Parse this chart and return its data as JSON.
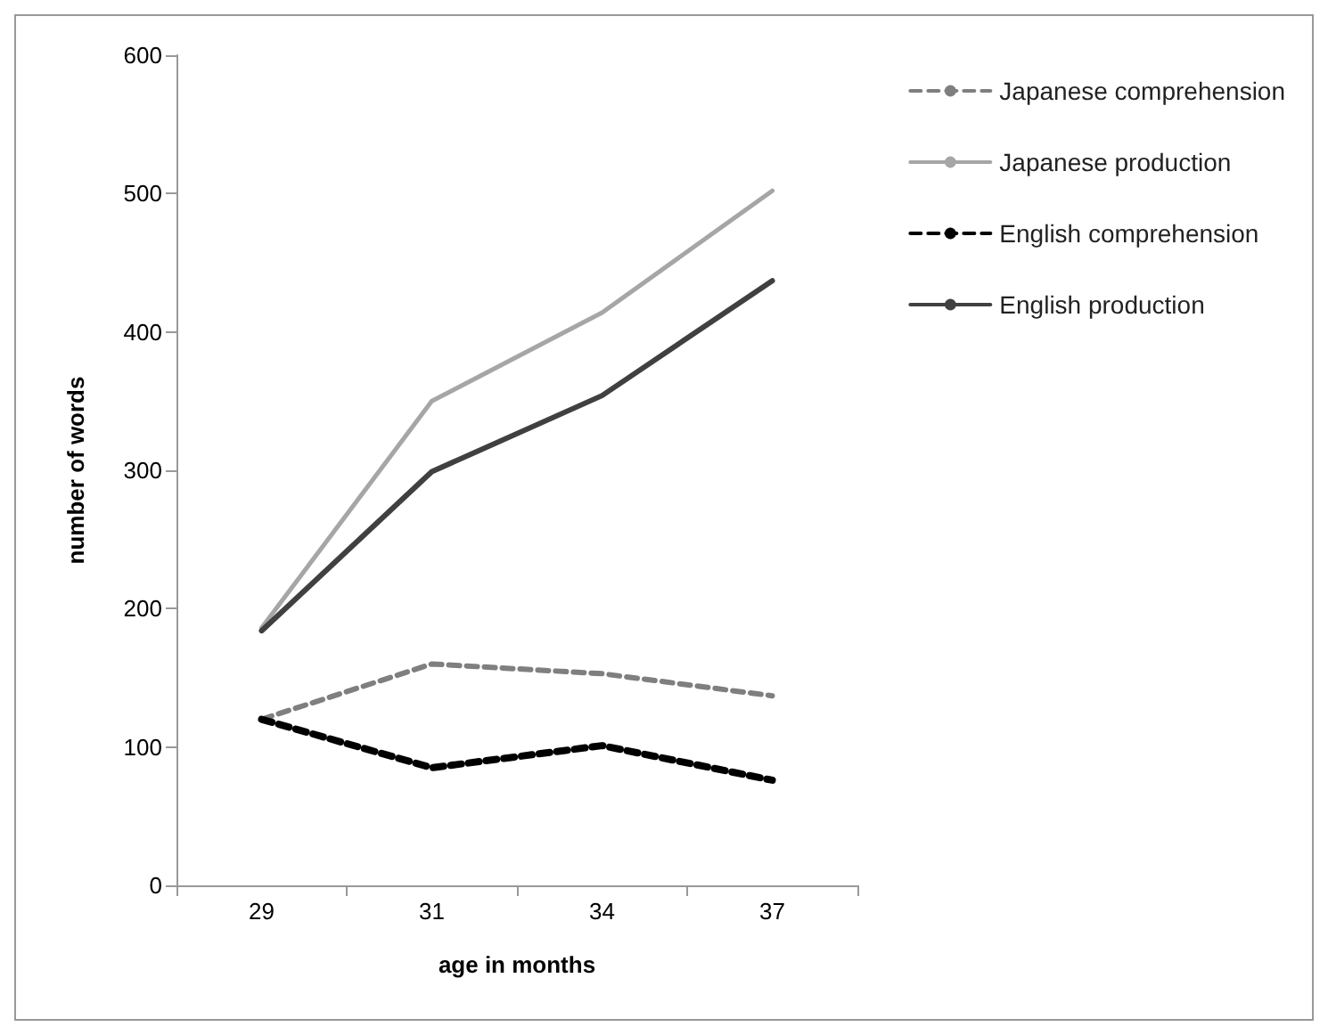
{
  "chart_data": {
    "type": "line",
    "categories": [
      "29",
      "31",
      "34",
      "37"
    ],
    "xlabel": "age in months",
    "ylabel": "number of words",
    "ylim": [
      0,
      600
    ],
    "yticks": [
      0,
      100,
      200,
      300,
      400,
      500,
      600
    ],
    "grid": false,
    "legend": "right",
    "marker": "none",
    "series": [
      {
        "name": "Japanese comprehension",
        "color": "#7f7f7f",
        "line_style": "dashed",
        "values": [
          120,
          160,
          153,
          137
        ]
      },
      {
        "name": "Japanese production",
        "color": "#a6a6a6",
        "line_style": "solid",
        "values": [
          186,
          350,
          414,
          502
        ]
      },
      {
        "name": "English comprehension",
        "color": "#000000",
        "line_style": "dashed",
        "values": [
          120,
          85,
          101,
          76
        ]
      },
      {
        "name": "English production",
        "color": "#404040",
        "line_style": "solid",
        "values": [
          184,
          299,
          354,
          437
        ]
      }
    ]
  }
}
